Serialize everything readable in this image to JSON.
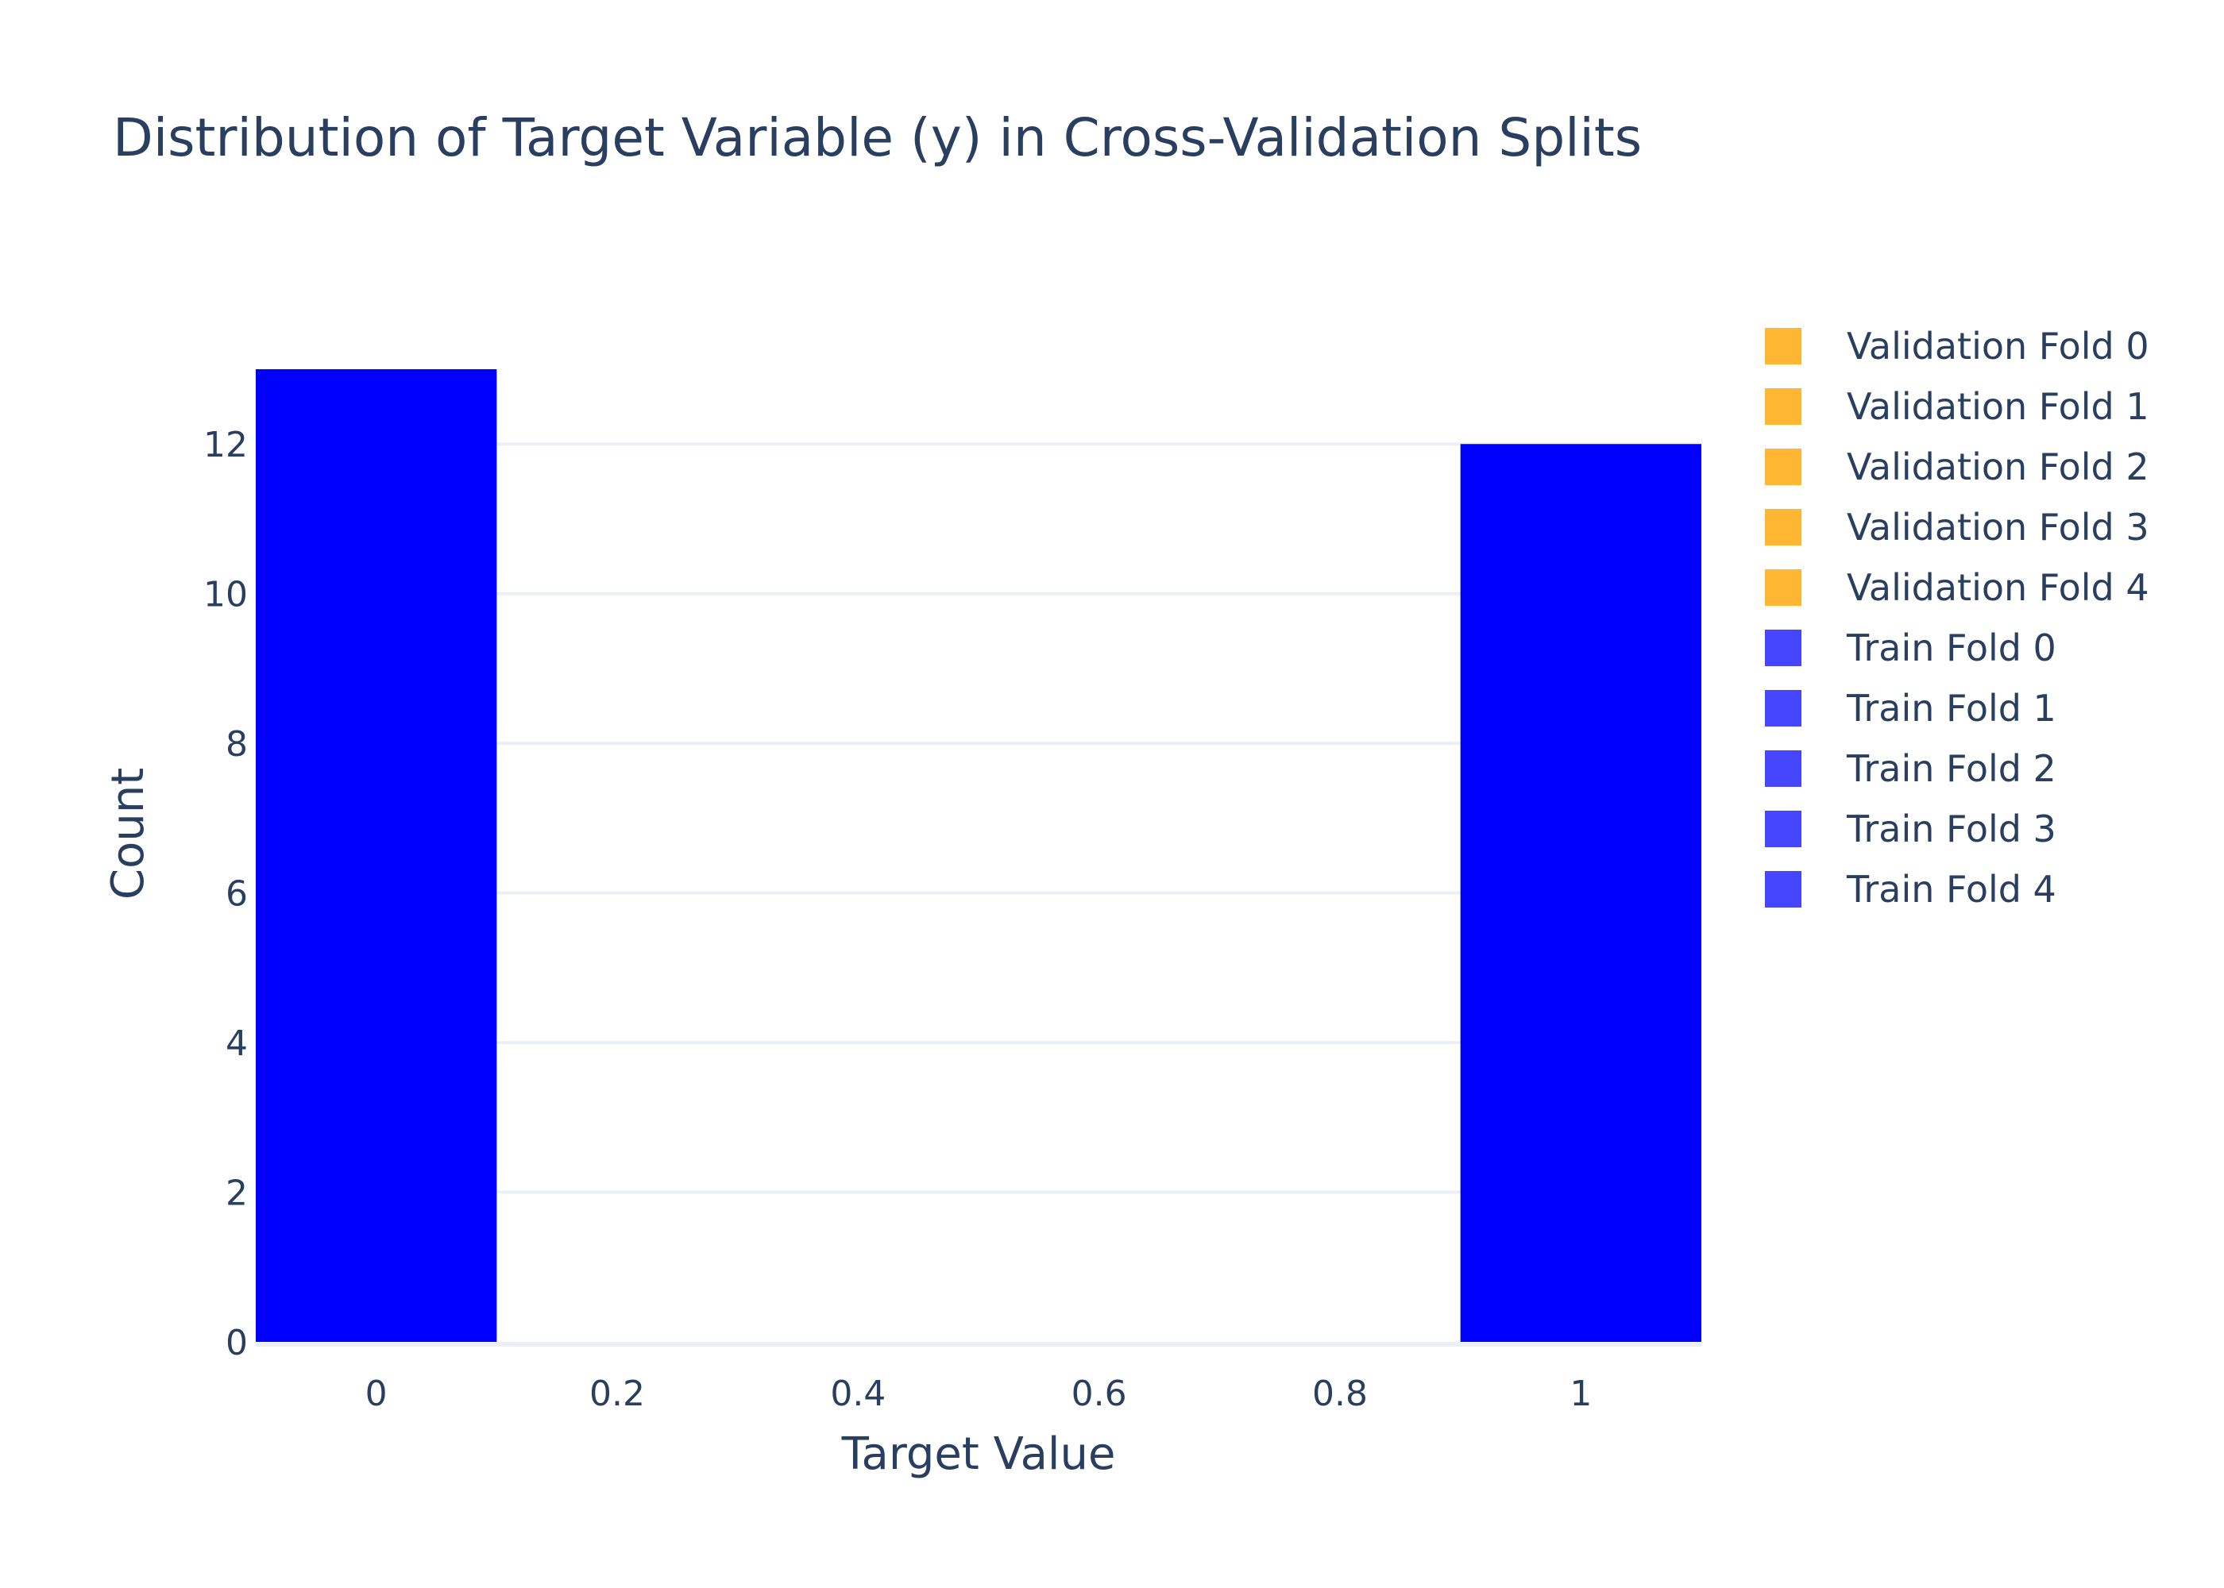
{
  "chart_data": {
    "type": "bar",
    "title": "Distribution of Target Variable (y) in Cross-Validation Splits",
    "xlabel": "Target Value",
    "ylabel": "Count",
    "x_ticks": [
      "0",
      "0.2",
      "0.4",
      "0.6",
      "0.8",
      "1"
    ],
    "y_ticks": [
      "0",
      "2",
      "4",
      "6",
      "8",
      "10",
      "12"
    ],
    "xlim": [
      -0.1,
      1.1
    ],
    "ylim": [
      0,
      13
    ],
    "grid": true,
    "legend_position": "top-right",
    "bars": [
      {
        "x": 0,
        "value": 13
      },
      {
        "x": 1,
        "value": 12
      }
    ],
    "bar_color": "#0000ff",
    "series": [
      {
        "name": "Validation Fold 0",
        "color": "#ffb733"
      },
      {
        "name": "Validation Fold 1",
        "color": "#ffb733"
      },
      {
        "name": "Validation Fold 2",
        "color": "#ffb733"
      },
      {
        "name": "Validation Fold 3",
        "color": "#ffb733"
      },
      {
        "name": "Validation Fold 4",
        "color": "#ffb733"
      },
      {
        "name": "Train Fold 0",
        "color": "#4646ff"
      },
      {
        "name": "Train Fold 1",
        "color": "#4646ff"
      },
      {
        "name": "Train Fold 2",
        "color": "#4646ff"
      },
      {
        "name": "Train Fold 3",
        "color": "#4646ff"
      },
      {
        "name": "Train Fold 4",
        "color": "#4646ff"
      }
    ]
  }
}
